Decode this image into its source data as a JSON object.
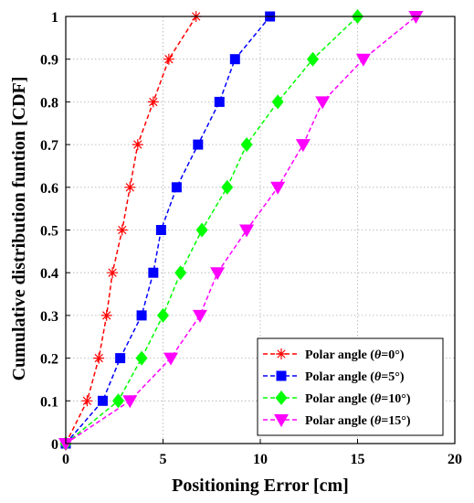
{
  "chart_data": {
    "type": "line",
    "xlabel": "Positioning Error [cm]",
    "ylabel": "Cumulative distribution funtion [CDF]",
    "xlim": [
      0,
      20
    ],
    "ylim": [
      0,
      1
    ],
    "x_ticks": [
      "0",
      "5",
      "10",
      "15",
      "20"
    ],
    "y_ticks": [
      "0",
      "0.1",
      "0.2",
      "0.3",
      "0.4",
      "0.5",
      "0.6",
      "0.7",
      "0.8",
      "0.9",
      "1"
    ],
    "grid": true,
    "legend_position": "bottom-right",
    "series": [
      {
        "name_prefix": "Polar angle (",
        "name_symbol": "θ",
        "name_suffix": "=0°)",
        "color": "#ff0000",
        "marker": "asterisk",
        "x": [
          0,
          1.1,
          1.7,
          2.1,
          2.4,
          2.9,
          3.3,
          3.7,
          4.5,
          5.3,
          6.7
        ],
        "y": [
          0,
          0.1,
          0.2,
          0.3,
          0.4,
          0.5,
          0.6,
          0.7,
          0.8,
          0.9,
          1.0
        ]
      },
      {
        "name_prefix": "Polar angle (",
        "name_symbol": "θ",
        "name_suffix": "=5°)",
        "color": "#0000ff",
        "marker": "square",
        "x": [
          0,
          1.9,
          2.8,
          3.9,
          4.5,
          4.9,
          5.7,
          6.8,
          7.9,
          8.7,
          10.5
        ],
        "y": [
          0,
          0.1,
          0.2,
          0.3,
          0.4,
          0.5,
          0.6,
          0.7,
          0.8,
          0.9,
          1.0
        ]
      },
      {
        "name_prefix": "Polar angle (",
        "name_symbol": "θ",
        "name_suffix": "=10°)",
        "color": "#00ff00",
        "marker": "diamond",
        "x": [
          0,
          2.7,
          3.9,
          5.0,
          5.9,
          7.0,
          8.3,
          9.3,
          10.9,
          12.7,
          15.0
        ],
        "y": [
          0,
          0.1,
          0.2,
          0.3,
          0.4,
          0.5,
          0.6,
          0.7,
          0.8,
          0.9,
          1.0
        ]
      },
      {
        "name_prefix": "Polar angle (",
        "name_symbol": "θ",
        "name_suffix": "=15°)",
        "color": "#ff00ff",
        "marker": "triangle-down",
        "x": [
          0,
          3.3,
          5.4,
          6.9,
          7.8,
          9.3,
          10.9,
          12.2,
          13.2,
          15.3,
          18.0
        ],
        "y": [
          0,
          0.1,
          0.2,
          0.3,
          0.4,
          0.5,
          0.6,
          0.7,
          0.8,
          0.9,
          1.0
        ]
      }
    ]
  }
}
